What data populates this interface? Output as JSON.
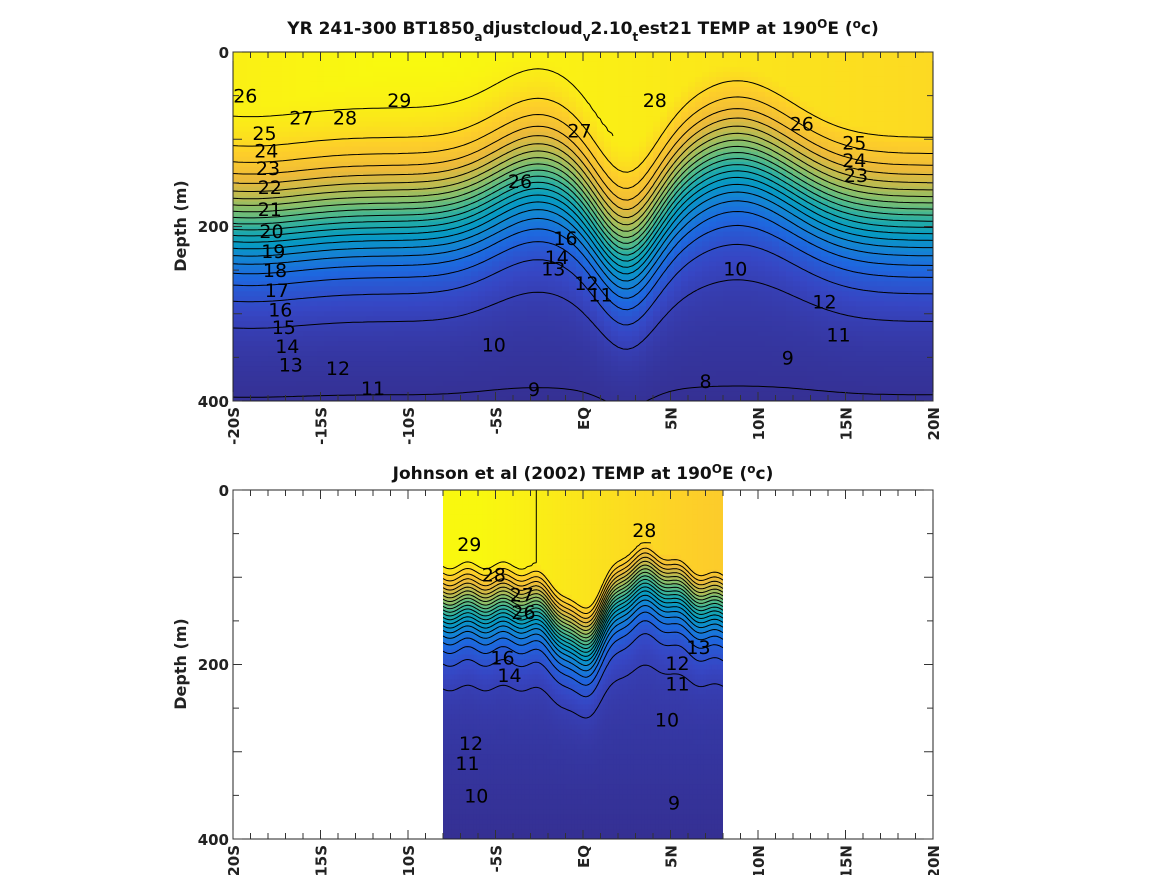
{
  "chart_data": [
    {
      "type": "heatmap",
      "title_parts": [
        "YR 241-300 BT1850",
        "a",
        "djustcloud",
        "v",
        "2.10",
        "t",
        "est21 TEMP at 190",
        "O",
        "E (",
        "o",
        "c)"
      ],
      "ylabel": "Depth (m)",
      "xlim": [
        -20,
        20
      ],
      "ylim": [
        400,
        0
      ],
      "xticklabels": [
        "-20S",
        "-15S",
        "-10S",
        "-5S",
        "EQ",
        "5N",
        "10N",
        "15N",
        "20N"
      ],
      "yticklabels": [
        "0",
        "200",
        "400"
      ],
      "colormap": "parula",
      "contour_labels": [
        {
          "v": "26",
          "x": -19.3,
          "d": 50
        },
        {
          "v": "27",
          "x": -16.1,
          "d": 75
        },
        {
          "v": "28",
          "x": -13.6,
          "d": 75
        },
        {
          "v": "29",
          "x": -10.5,
          "d": 55
        },
        {
          "v": "28",
          "x": 4.1,
          "d": 55
        },
        {
          "v": "27",
          "x": -0.2,
          "d": 90
        },
        {
          "v": "26",
          "x": 12.5,
          "d": 82
        },
        {
          "v": "25",
          "x": 15.5,
          "d": 104
        },
        {
          "v": "24",
          "x": 15.5,
          "d": 124
        },
        {
          "v": "23",
          "x": 15.6,
          "d": 141
        },
        {
          "v": "25",
          "x": -18.2,
          "d": 93
        },
        {
          "v": "24",
          "x": -18.1,
          "d": 113
        },
        {
          "v": "23",
          "x": -18.0,
          "d": 133
        },
        {
          "v": "22",
          "x": -17.9,
          "d": 155
        },
        {
          "v": "21",
          "x": -17.9,
          "d": 180
        },
        {
          "v": "20",
          "x": -17.8,
          "d": 205
        },
        {
          "v": "19",
          "x": -17.7,
          "d": 228
        },
        {
          "v": "18",
          "x": -17.6,
          "d": 250
        },
        {
          "v": "17",
          "x": -17.5,
          "d": 273
        },
        {
          "v": "16",
          "x": -17.3,
          "d": 295
        },
        {
          "v": "15",
          "x": -17.1,
          "d": 315
        },
        {
          "v": "14",
          "x": -16.9,
          "d": 337
        },
        {
          "v": "13",
          "x": -16.7,
          "d": 358
        },
        {
          "v": "26",
          "x": -3.6,
          "d": 148
        },
        {
          "v": "16",
          "x": -1.0,
          "d": 213
        },
        {
          "v": "14",
          "x": -1.5,
          "d": 235
        },
        {
          "v": "13",
          "x": -1.7,
          "d": 248
        },
        {
          "v": "12",
          "x": 0.2,
          "d": 265
        },
        {
          "v": "11",
          "x": 1.0,
          "d": 278
        },
        {
          "v": "10",
          "x": 8.7,
          "d": 248
        },
        {
          "v": "12",
          "x": 13.8,
          "d": 286
        },
        {
          "v": "11",
          "x": 14.6,
          "d": 324
        },
        {
          "v": "10",
          "x": -5.1,
          "d": 335
        },
        {
          "v": "9",
          "x": 11.7,
          "d": 350
        },
        {
          "v": "12",
          "x": -14.0,
          "d": 362
        },
        {
          "v": "11",
          "x": -12.0,
          "d": 385
        },
        {
          "v": "9",
          "x": -2.8,
          "d": 386
        },
        {
          "v": "8",
          "x": 7.0,
          "d": 377
        }
      ]
    },
    {
      "type": "heatmap",
      "title_parts": [
        "Johnson et al (2002) TEMP at 190",
        "O",
        "E (",
        "o",
        "c)"
      ],
      "ylabel": "Depth (m)",
      "xlim": [
        -20,
        20
      ],
      "ylim": [
        400,
        0
      ],
      "data_xrange": [
        -8,
        8
      ],
      "xticklabels": [
        "-20S",
        "-15S",
        "-10S",
        "-5S",
        "EQ",
        "5N",
        "10N",
        "15N",
        "20N"
      ],
      "yticklabels": [
        "0",
        "200",
        "400"
      ],
      "colormap": "parula",
      "contour_labels": [
        {
          "v": "29",
          "x": -6.5,
          "d": 62
        },
        {
          "v": "28",
          "x": -5.1,
          "d": 97
        },
        {
          "v": "28",
          "x": 3.5,
          "d": 46
        },
        {
          "v": "27",
          "x": -3.5,
          "d": 120
        },
        {
          "v": "26",
          "x": -3.4,
          "d": 140
        },
        {
          "v": "16",
          "x": -4.6,
          "d": 192
        },
        {
          "v": "14",
          "x": -4.2,
          "d": 212
        },
        {
          "v": "13",
          "x": 6.6,
          "d": 180
        },
        {
          "v": "12",
          "x": 5.4,
          "d": 198
        },
        {
          "v": "11",
          "x": 5.4,
          "d": 222
        },
        {
          "v": "10",
          "x": 4.8,
          "d": 263
        },
        {
          "v": "12",
          "x": -6.4,
          "d": 290
        },
        {
          "v": "11",
          "x": -6.6,
          "d": 313
        },
        {
          "v": "10",
          "x": -6.1,
          "d": 350
        },
        {
          "v": "9",
          "x": 5.2,
          "d": 358
        }
      ]
    }
  ]
}
